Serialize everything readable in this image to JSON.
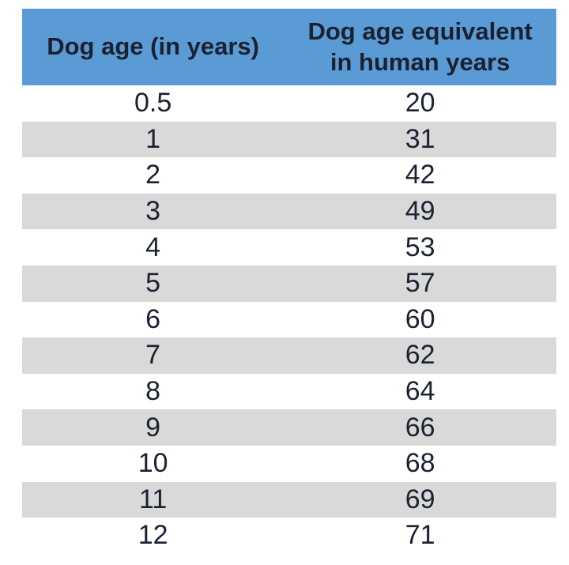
{
  "colors": {
    "header_bg": "#5b9bd5",
    "row_alt_bg": "#d9d9d9",
    "row_bg": "#ffffff",
    "text": "#1b2130"
  },
  "chart_data": {
    "type": "table",
    "title": "",
    "columns": [
      "Dog age (in years)",
      "Dog age equivalent in human years"
    ],
    "rows": [
      [
        "0.5",
        "20"
      ],
      [
        "1",
        "31"
      ],
      [
        "2",
        "42"
      ],
      [
        "3",
        "49"
      ],
      [
        "4",
        "53"
      ],
      [
        "5",
        "57"
      ],
      [
        "6",
        "60"
      ],
      [
        "7",
        "62"
      ],
      [
        "8",
        "64"
      ],
      [
        "9",
        "66"
      ],
      [
        "10",
        "68"
      ],
      [
        "11",
        "69"
      ],
      [
        "12",
        "71"
      ]
    ],
    "layout_hints": {
      "striped": true,
      "stripe_pattern": "odd-rows-gray",
      "header_style": "blue-bold",
      "alignment": "center"
    }
  }
}
